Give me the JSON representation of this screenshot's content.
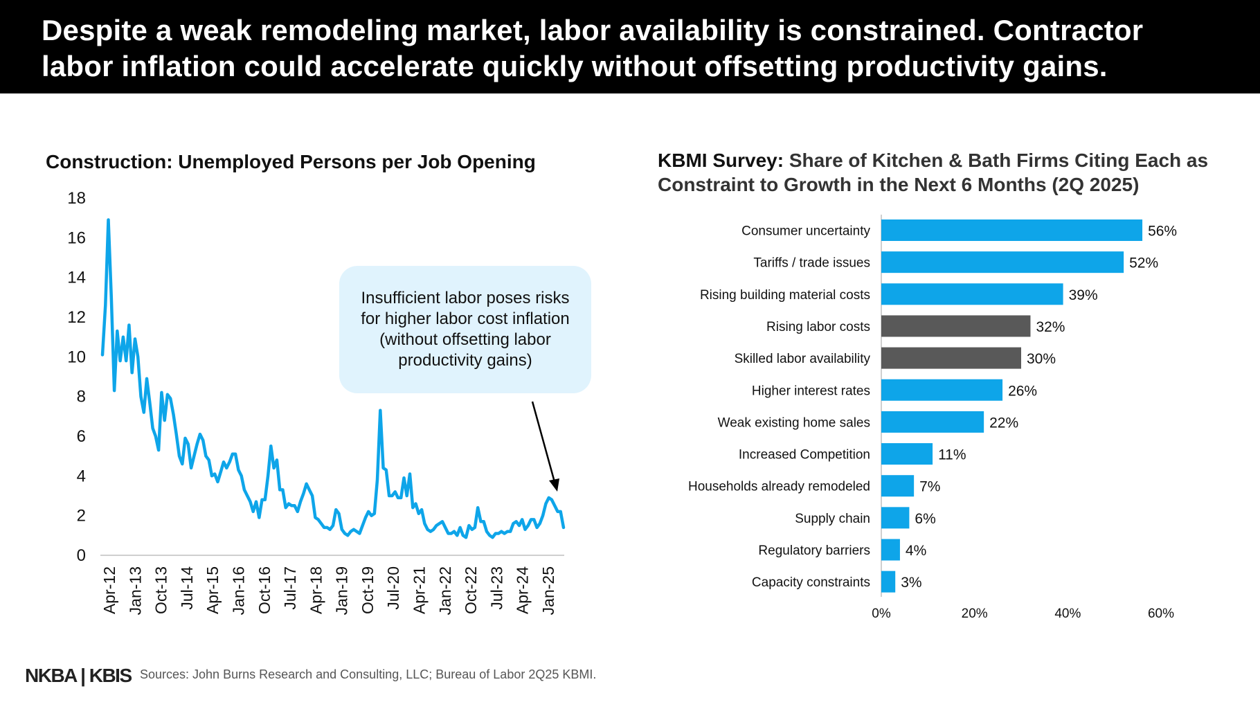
{
  "header": {
    "title": "Despite a weak remodeling market, labor availability is constrained. Contractor labor inflation could accelerate quickly without offsetting productivity gains."
  },
  "left_chart": {
    "title": "Construction: Unemployed Persons per Job Opening",
    "callout": "Insufficient labor poses risks for higher labor cost inflation (without offsetting labor productivity gains)"
  },
  "right_chart": {
    "title_bold": "KBMI Survey:",
    "title_rest": " Share of Kitchen & Bath Firms Citing Each as Constraint to Growth in the Next 6 Months (2Q 2025)"
  },
  "footer": {
    "logo": "NKBA | KBIS",
    "sources": "Sources: John Burns Research and Consulting, LLC; Bureau of Labor 2Q25 KBMI."
  },
  "colors": {
    "accent_blue": "#0ea5e9",
    "highlight_gray": "#595959",
    "callout_bg": "#e0f3fd"
  },
  "chart_data": [
    {
      "type": "line",
      "title": "Construction: Unemployed Persons per Job Opening",
      "ylim": [
        0,
        18
      ],
      "yticks": [
        0,
        2,
        4,
        6,
        8,
        10,
        12,
        14,
        16,
        18
      ],
      "xtick_labels": [
        "Apr-12",
        "Jan-13",
        "Oct-13",
        "Jul-14",
        "Apr-15",
        "Jan-16",
        "Oct-16",
        "Jul-17",
        "Apr-18",
        "Jan-19",
        "Oct-19",
        "Jul-20",
        "Apr-21",
        "Jan-22",
        "Oct-22",
        "Jul-23",
        "Apr-24",
        "Jan-25"
      ],
      "x_start": "Apr-12",
      "x_end": "Jun-25",
      "series": [
        {
          "color": "#0ea5e9",
          "values": [
            10.1,
            12.6,
            16.9,
            13.0,
            8.3,
            11.3,
            9.8,
            11.0,
            9.8,
            11.6,
            9.2,
            10.9,
            10.0,
            8.0,
            7.2,
            8.9,
            7.7,
            6.4,
            6.0,
            5.3,
            8.2,
            6.8,
            8.1,
            7.9,
            7.1,
            6.1,
            5.0,
            4.6,
            5.9,
            5.6,
            4.4,
            5.0,
            5.6,
            6.1,
            5.8,
            5.0,
            4.8,
            4.0,
            4.1,
            3.7,
            4.2,
            4.7,
            4.4,
            4.7,
            5.1,
            5.1,
            4.3,
            4.0,
            3.3,
            3.0,
            2.7,
            2.2,
            2.7,
            1.9,
            2.8,
            2.8,
            4.0,
            5.5,
            4.4,
            4.8,
            3.3,
            3.3,
            2.4,
            2.6,
            2.5,
            2.5,
            2.2,
            2.7,
            3.1,
            3.6,
            3.3,
            3.0,
            1.9,
            1.8,
            1.6,
            1.4,
            1.4,
            1.3,
            1.5,
            2.3,
            2.1,
            1.3,
            1.1,
            1.0,
            1.2,
            1.3,
            1.2,
            1.1,
            1.5,
            1.9,
            2.2,
            2.0,
            2.1,
            3.8,
            7.3,
            4.4,
            4.3,
            3.0,
            3.0,
            3.2,
            2.9,
            2.9,
            3.9,
            3.0,
            4.1,
            2.4,
            2.6,
            2.1,
            2.3,
            1.6,
            1.3,
            1.2,
            1.3,
            1.5,
            1.6,
            1.7,
            1.4,
            1.1,
            1.1,
            1.2,
            1.0,
            1.4,
            1.0,
            0.9,
            1.5,
            1.3,
            1.4,
            2.4,
            1.7,
            1.7,
            1.2,
            1.0,
            0.9,
            1.1,
            1.1,
            1.2,
            1.1,
            1.2,
            1.2,
            1.6,
            1.7,
            1.5,
            1.8,
            1.3,
            1.5,
            1.8,
            1.8,
            1.4,
            1.6,
            2.0,
            2.6,
            2.9,
            2.8,
            2.5,
            2.2,
            2.2,
            1.4
          ]
        }
      ]
    },
    {
      "type": "bar",
      "orientation": "horizontal",
      "title": "KBMI Survey: Share of Kitchen & Bath Firms Citing Each as Constraint to Growth in the Next 6 Months (2Q 2025)",
      "xlim": [
        0,
        60
      ],
      "xticks": [
        "0%",
        "20%",
        "40%",
        "60%"
      ],
      "categories": [
        "Consumer uncertainty",
        "Tariffs /  trade issues",
        "Rising building material costs",
        "Rising labor costs",
        "Skilled labor availability",
        "Higher interest rates",
        "Weak existing home sales",
        "Increased Competition",
        "Households already remodeled",
        "Supply chain",
        "Regulatory barriers",
        "Capacity constraints"
      ],
      "values": [
        56,
        52,
        39,
        32,
        30,
        26,
        22,
        11,
        7,
        6,
        4,
        3
      ],
      "labels": [
        "56%",
        "52%",
        "39%",
        "32%",
        "30%",
        "26%",
        "22%",
        "11%",
        "7%",
        "6%",
        "4%",
        "3%"
      ],
      "highlighted": [
        "Rising labor costs",
        "Skilled labor availability"
      ],
      "bar_color": "#0ea5e9",
      "highlight_color": "#595959"
    }
  ]
}
